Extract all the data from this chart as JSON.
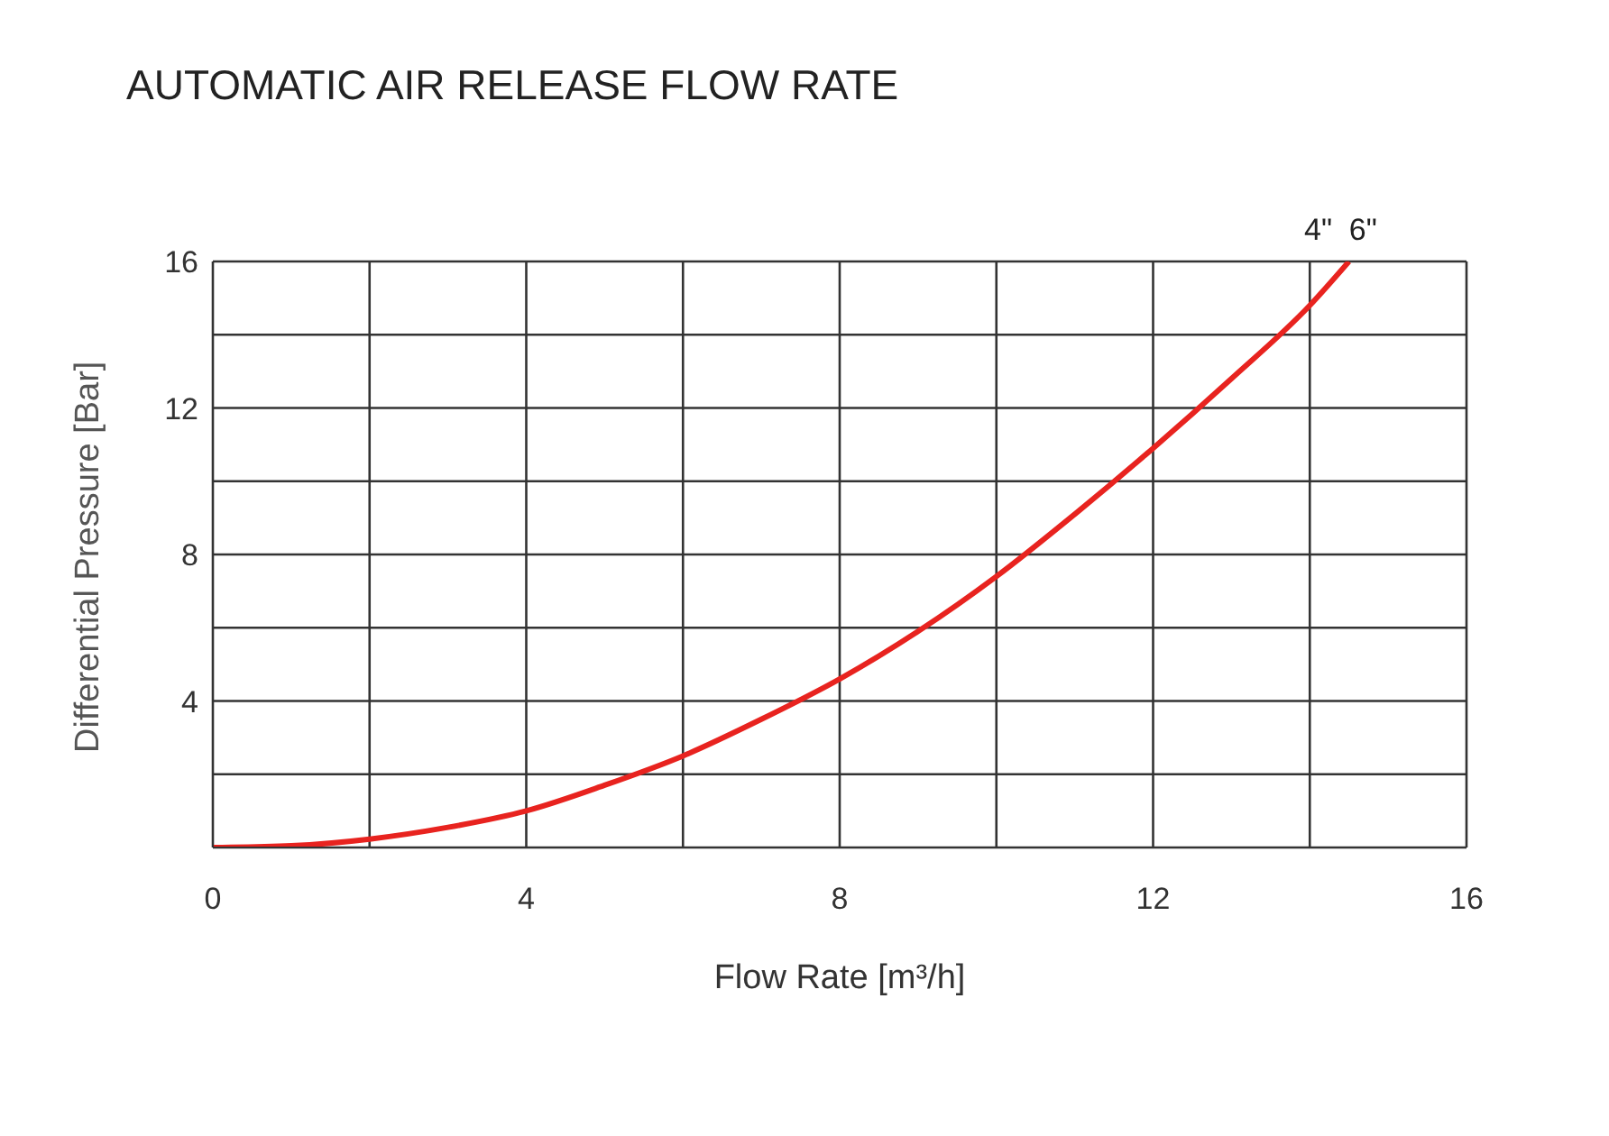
{
  "chart_data": {
    "type": "line",
    "title": "AUTOMATIC AIR RELEASE FLOW RATE",
    "xlabel": "Flow Rate [m³/h]",
    "ylabel": "Differential Pressure [Bar]",
    "annotations": [
      "4\"  6\""
    ],
    "x": [
      0,
      1,
      2,
      3,
      4,
      5,
      6,
      7,
      8,
      9,
      10,
      11,
      12,
      13,
      14,
      14.5
    ],
    "series": [
      {
        "color": "#e8231f",
        "values": [
          0,
          0.05,
          0.23,
          0.55,
          1.0,
          1.7,
          2.5,
          3.5,
          4.6,
          5.9,
          7.4,
          9.1,
          10.9,
          12.8,
          14.8,
          16
        ]
      }
    ],
    "xlim": [
      0,
      16
    ],
    "xticks": [
      0,
      {
        "value": 2,
        "label": null
      },
      4,
      {
        "value": 6,
        "label": null
      },
      8,
      {
        "value": 10,
        "label": null
      },
      12,
      {
        "value": 14,
        "label": null
      },
      16
    ],
    "ylim": [
      0,
      16
    ],
    "yticks": [
      {
        "value": 0,
        "label": null
      },
      {
        "value": 2,
        "label": null
      },
      4,
      {
        "value": 6,
        "label": null
      },
      8,
      {
        "value": 10,
        "label": null
      },
      12,
      {
        "value": 14,
        "label": null
      },
      16
    ],
    "grid": true,
    "legend": false,
    "marker": "none",
    "line_style": "solid"
  }
}
